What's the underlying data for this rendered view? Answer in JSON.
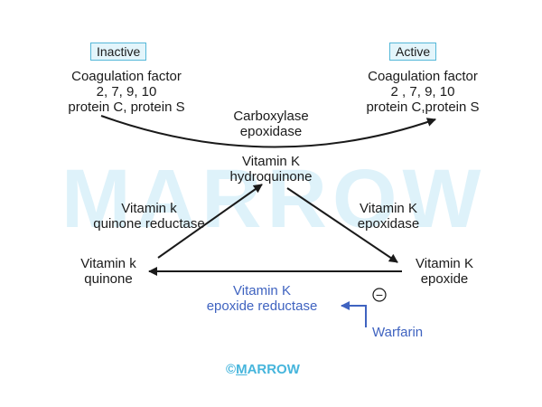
{
  "watermark": "MARROW",
  "inactive": {
    "tag": "Inactive",
    "line1": "Coagulation factor",
    "line2": "2, 7, 9, 10",
    "line3": "protein C, protein S"
  },
  "active": {
    "tag": "Active",
    "line1": "Coagulation factor",
    "line2": "2 , 7, 9, 10",
    "line3": "protein C,protein S"
  },
  "carboxylase": {
    "line1": "Carboxylase",
    "line2": "epoxidase"
  },
  "hydroquinone": {
    "line1": "Vitamin K",
    "line2": "hydroquinone"
  },
  "quinone_reductase": {
    "line1": "Vitamin k",
    "line2": "quinone reductase"
  },
  "epoxidase": {
    "line1": "Vitamin K",
    "line2": "epoxidase"
  },
  "quinone": {
    "line1": "Vitamin k",
    "line2": "quinone"
  },
  "epoxide": {
    "line1": "Vitamin K",
    "line2": "epoxide"
  },
  "epoxide_reductase": {
    "line1": "Vitamin K",
    "line2": "epoxide reductase"
  },
  "inhibition_symbol": "−",
  "warfarin": "Warfarin",
  "copyright": {
    "symbol": "©",
    "first_letter": "M",
    "rest": "ARROW"
  },
  "colors": {
    "text": "#1a1a1a",
    "accent_blue": "#3f63c0",
    "tag_border": "#55b8d8",
    "tag_fill": "#e3f5fb",
    "watermark": "#def2fa",
    "copyright": "#46b5dc"
  }
}
